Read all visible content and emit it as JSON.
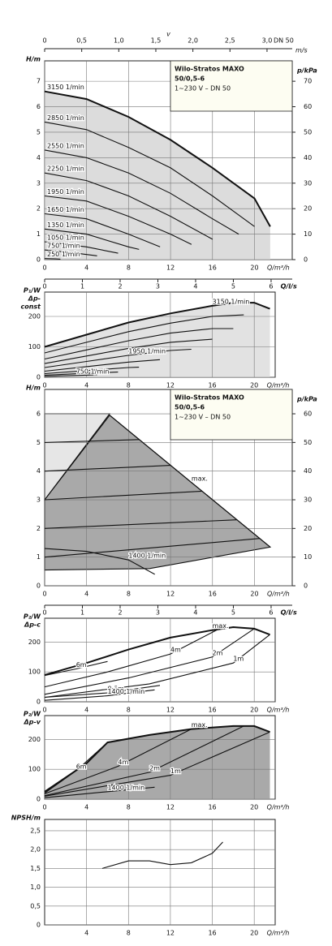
{
  "chart_data": [
    {
      "type": "line",
      "ylabel": [
        "H/m"
      ],
      "y2label": "p/kPa",
      "xlabel": "Q/m³/h",
      "box": [
        "Wilo-Stratos MAXO",
        "50/0,5-6",
        "1~230 V – DN 50"
      ],
      "top_axis": {
        "label": "v",
        "unit": "m/s",
        "note": "DN 50",
        "lim": [
          0,
          3.34
        ],
        "ticks": [
          0,
          {
            "value": 0.5,
            "label": "0,5"
          },
          {
            "value": 1,
            "label": "1,0"
          },
          {
            "value": 1.5,
            "label": "1,5"
          },
          {
            "value": 2,
            "label": "2,0"
          },
          {
            "value": 2.5,
            "label": "2,5"
          },
          {
            "value": 3,
            "label": "3,0"
          }
        ]
      },
      "second_x_axis": {
        "label": "Q/l/s",
        "lim": [
          0,
          6.56
        ],
        "ticks": [
          0,
          1,
          2,
          3,
          4,
          5,
          6
        ]
      },
      "xlim": [
        0,
        23.6
      ],
      "xticks": [
        0,
        4,
        8,
        12,
        16,
        20
      ],
      "ylim": [
        0,
        7.8
      ],
      "yticks": [
        0,
        1,
        2,
        3,
        4,
        5,
        6,
        7
      ],
      "y2lim": [
        0,
        78
      ],
      "y2ticks": [
        0,
        10,
        20,
        30,
        40,
        50,
        60,
        70
      ],
      "grid": true,
      "color": "#111",
      "series": [
        {
          "name": "3150 1/min",
          "fill": "#dcdcdc",
          "x": [
            0,
            4,
            8,
            12,
            16,
            20,
            21.5
          ],
          "values": [
            6.6,
            6.3,
            5.6,
            4.7,
            3.6,
            2.4,
            1.3
          ]
        },
        {
          "name": "2850 1/min",
          "x": [
            0,
            4,
            8,
            12,
            16,
            20
          ],
          "values": [
            5.4,
            5.1,
            4.4,
            3.6,
            2.5,
            1.3
          ]
        },
        {
          "name": "2550 1/min",
          "x": [
            0,
            4,
            8,
            12,
            16,
            18.5
          ],
          "values": [
            4.3,
            4.0,
            3.4,
            2.6,
            1.6,
            1.0
          ]
        },
        {
          "name": "2250 1/min",
          "x": [
            0,
            4,
            8,
            12,
            16
          ],
          "values": [
            3.4,
            3.1,
            2.5,
            1.7,
            0.8
          ]
        },
        {
          "name": "1950 1/min",
          "x": [
            0,
            4,
            8,
            12,
            14
          ],
          "values": [
            2.5,
            2.3,
            1.7,
            1.0,
            0.6
          ]
        },
        {
          "name": "1650 1/min",
          "x": [
            0,
            4,
            8,
            11
          ],
          "values": [
            1.8,
            1.6,
            1.0,
            0.5
          ]
        },
        {
          "name": "1350 1/min",
          "x": [
            0,
            4,
            8,
            9
          ],
          "values": [
            1.2,
            1.0,
            0.5,
            0.4
          ]
        },
        {
          "name": "1050 1/min",
          "x": [
            0,
            4,
            7
          ],
          "values": [
            0.7,
            0.5,
            0.25
          ]
        },
        {
          "name": "750 1/min",
          "x": [
            0,
            3,
            5
          ],
          "values": [
            0.38,
            0.25,
            0.15
          ]
        },
        {
          "name": "250 1/min",
          "x": [
            0,
            1,
            1.5
          ],
          "values": [
            0.04,
            0.03,
            0.02
          ]
        }
      ]
    },
    {
      "type": "line",
      "ylabel": [
        "P₁/W",
        "Δp-",
        "const"
      ],
      "xlabel": "Q/m³/h",
      "xlim": [
        0,
        22
      ],
      "xticks": [
        0,
        4,
        8,
        12,
        16,
        20
      ],
      "ylim": [
        0,
        280
      ],
      "yticks": [
        0,
        100,
        200
      ],
      "grid": true,
      "color": "#111",
      "series": [
        {
          "name": "3150 1/min",
          "fill": "#e2e2e2",
          "x": [
            0,
            4,
            8,
            12,
            16,
            18,
            20,
            21.5
          ],
          "values": [
            100,
            140,
            180,
            210,
            235,
            245,
            245,
            225
          ]
        },
        {
          "x": [
            0,
            4,
            8,
            12,
            16,
            19
          ],
          "values": [
            80,
            115,
            150,
            178,
            200,
            205
          ]
        },
        {
          "x": [
            0,
            4,
            8,
            12,
            16,
            18
          ],
          "values": [
            60,
            90,
            120,
            145,
            160,
            160
          ]
        },
        {
          "x": [
            0,
            4,
            8,
            12,
            16
          ],
          "values": [
            45,
            70,
            95,
            115,
            125
          ]
        },
        {
          "name": "1950 1/min",
          "x": [
            0,
            4,
            8,
            12,
            14
          ],
          "values": [
            32,
            52,
            72,
            88,
            92
          ]
        },
        {
          "x": [
            0,
            4,
            8,
            11
          ],
          "values": [
            20,
            35,
            50,
            58
          ]
        },
        {
          "x": [
            0,
            4,
            8,
            9
          ],
          "values": [
            12,
            22,
            32,
            33
          ]
        },
        {
          "x": [
            0,
            4,
            7
          ],
          "values": [
            7,
            13,
            17
          ]
        },
        {
          "name": "750 1/min",
          "x": [
            0,
            3,
            5
          ],
          "values": [
            3,
            6,
            8
          ]
        }
      ]
    },
    {
      "type": "line",
      "ylabel": [
        "H/m"
      ],
      "y2label": "p/kPa",
      "xlabel": "Q/m³/h",
      "box": [
        "Wilo-Stratos MAXO",
        "50/0,5-6",
        "1~230 V – DN 50"
      ],
      "second_x_axis": {
        "label": "Q/l/s",
        "lim": [
          0,
          6.56
        ],
        "ticks": [
          0,
          1,
          2,
          3,
          4,
          5,
          6
        ]
      },
      "xlim": [
        0,
        23.6
      ],
      "xticks": [
        0,
        4,
        8,
        12,
        16,
        20
      ],
      "ylim": [
        0,
        6.85
      ],
      "yticks": [
        0,
        1,
        2,
        3,
        4,
        5,
        6
      ],
      "y2lim": [
        0,
        68.5
      ],
      "y2ticks": [
        0,
        10,
        20,
        30,
        40,
        50,
        60
      ],
      "grid": true,
      "color": "#111",
      "series": [
        {
          "fill": "#e6e6e6",
          "closed": true,
          "x": [
            0,
            6.2,
            0
          ],
          "values": [
            6,
            6,
            3
          ]
        },
        {
          "fill": "#a9a9a9",
          "closed": true,
          "x": [
            0,
            6.2,
            21.5,
            10,
            0
          ],
          "values": [
            3,
            5.95,
            1.35,
            0.6,
            0.55
          ]
        },
        {
          "name": "max.",
          "x": [
            6.2,
            14,
            21.5
          ],
          "values": [
            5.95,
            3.6,
            1.35
          ]
        },
        {
          "x": [
            0,
            9
          ],
          "values": [
            5,
            5.1
          ]
        },
        {
          "x": [
            0,
            12
          ],
          "values": [
            4,
            4.2
          ]
        },
        {
          "x": [
            0,
            15
          ],
          "values": [
            3,
            3.3
          ]
        },
        {
          "x": [
            0,
            18.3
          ],
          "values": [
            2,
            2.3
          ]
        },
        {
          "x": [
            0,
            20.5
          ],
          "values": [
            1,
            1.65
          ]
        },
        {
          "name": "1400 1/min",
          "x": [
            0,
            4,
            8,
            10.5
          ],
          "values": [
            1.3,
            1.2,
            0.9,
            0.4
          ]
        }
      ]
    },
    {
      "type": "line",
      "ylabel": [
        "P₂/W",
        "Δp-c"
      ],
      "xlabel": "Q/m³/h",
      "xlim": [
        0,
        22
      ],
      "xticks": [
        0,
        4,
        8,
        12,
        16,
        20
      ],
      "ylim": [
        0,
        280
      ],
      "yticks": [
        0,
        100,
        200
      ],
      "grid": true,
      "color": "#111",
      "series": [
        {
          "name": "max.",
          "x": [
            0,
            4,
            8,
            12,
            16,
            18,
            20,
            21.5
          ],
          "values": [
            90,
            130,
            175,
            215,
            240,
            250,
            245,
            225
          ]
        },
        {
          "name": "6m",
          "x": [
            0,
            3,
            6
          ],
          "values": [
            88,
            110,
            135
          ]
        },
        {
          "name": "4m",
          "x": [
            0,
            6,
            12,
            16.5
          ],
          "values": [
            50,
            100,
            160,
            242
          ]
        },
        {
          "name": "2m",
          "x": [
            0,
            8,
            16,
            20
          ],
          "values": [
            25,
            80,
            150,
            245
          ]
        },
        {
          "name": "1m",
          "x": [
            0,
            10,
            18,
            21.5
          ],
          "values": [
            15,
            60,
            130,
            225
          ]
        },
        {
          "name": "0,5m",
          "x": [
            0,
            6,
            11
          ],
          "values": [
            15,
            30,
            55
          ]
        },
        {
          "name": "1400 1/min",
          "x": [
            0,
            6,
            10.5
          ],
          "values": [
            5,
            20,
            40
          ]
        }
      ]
    },
    {
      "type": "line",
      "ylabel": [
        "P₂/W",
        "Δp-v"
      ],
      "xlabel": "Q/m³/h",
      "xlim": [
        0,
        22
      ],
      "xticks": [
        0,
        4,
        8,
        12,
        16,
        20
      ],
      "ylim": [
        0,
        280
      ],
      "yticks": [
        0,
        100,
        200
      ],
      "grid": true,
      "color": "#111",
      "series": [
        {
          "name": "max.",
          "fill": "#a9a9a9",
          "x": [
            0,
            4,
            6,
            10,
            14,
            18,
            20,
            21.5
          ],
          "values": [
            25,
            120,
            190,
            215,
            235,
            245,
            245,
            225
          ]
        },
        {
          "name": "6m",
          "x": [
            0,
            3,
            6
          ],
          "values": [
            20,
            95,
            190
          ]
        },
        {
          "name": "4m",
          "x": [
            0,
            7,
            14
          ],
          "values": [
            18,
            110,
            235
          ]
        },
        {
          "name": "2m",
          "x": [
            0,
            10,
            19
          ],
          "values": [
            12,
            90,
            245
          ]
        },
        {
          "name": "1m",
          "x": [
            0,
            12,
            21.5
          ],
          "values": [
            10,
            80,
            225
          ]
        },
        {
          "name": "1400 1/min",
          "x": [
            0,
            6,
            10.5
          ],
          "values": [
            5,
            25,
            40
          ]
        }
      ]
    },
    {
      "type": "line",
      "ylabel": [
        "NPSH/m"
      ],
      "xlabel": "Q/m³/h",
      "xlim": [
        0,
        22
      ],
      "xticks": [
        4,
        8,
        12,
        16,
        20
      ],
      "ylim": [
        0,
        2.8
      ],
      "yticks": [
        0,
        {
          "value": 0.5,
          "label": "0,5"
        },
        {
          "value": 1,
          "label": "1,0"
        },
        {
          "value": 1.5,
          "label": "1,5"
        },
        {
          "value": 2,
          "label": "2,0"
        },
        {
          "value": 2.5,
          "label": "2,5"
        }
      ],
      "grid": true,
      "color": "#111",
      "series": [
        {
          "x": [
            5.5,
            8,
            10,
            12,
            14,
            16,
            17
          ],
          "values": [
            1.5,
            1.7,
            1.7,
            1.6,
            1.65,
            1.9,
            2.2
          ]
        }
      ]
    }
  ]
}
